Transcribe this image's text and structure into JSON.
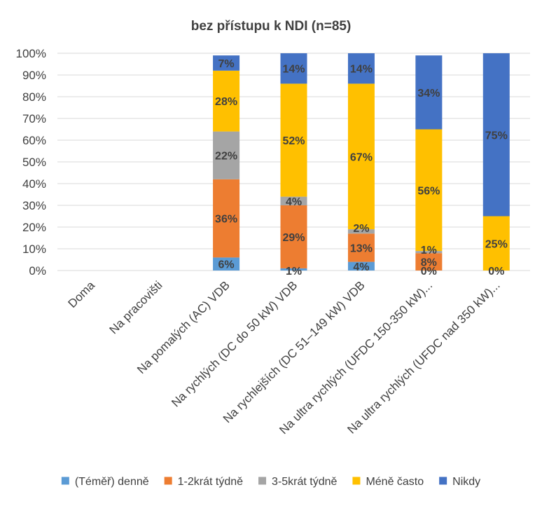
{
  "chart_data": {
    "type": "bar",
    "stacked": true,
    "title": "bez přístupu k NDI (n=85)",
    "xlabel": "",
    "ylabel": "",
    "ylim": [
      0,
      100
    ],
    "y_ticks": [
      "0%",
      "10%",
      "20%",
      "30%",
      "40%",
      "50%",
      "60%",
      "70%",
      "80%",
      "90%",
      "100%"
    ],
    "grid": true,
    "legend_position": "bottom",
    "categories": [
      "Doma",
      "Na pracovišti",
      "Na pomalých (AC) VDB",
      "Na rychlých (DC do 50 kW) VDB",
      "Na rychlejších (DC 51–149 kW) VDB",
      "Na ultra rychlých (UFDC 150-350 kW)...",
      "Na ultra rychlých (UFDC nad 350 kW)..."
    ],
    "series": [
      {
        "name": "(Téměř) denně",
        "color": "#5B9BD5",
        "values": [
          null,
          null,
          6,
          1,
          4,
          0,
          0
        ],
        "labels": [
          "",
          "",
          "6%",
          "1%",
          "4%",
          "0%",
          "0%"
        ]
      },
      {
        "name": "1-2krát týdně",
        "color": "#ED7D31",
        "values": [
          null,
          null,
          36,
          29,
          13,
          8,
          0
        ],
        "labels": [
          "",
          "",
          "36%",
          "29%",
          "13%",
          "8%",
          ""
        ]
      },
      {
        "name": "3-5krát týdně",
        "color": "#A5A5A5",
        "values": [
          null,
          null,
          22,
          4,
          2,
          1,
          0
        ],
        "labels": [
          "",
          "",
          "22%",
          "4%",
          "2%",
          "1%",
          ""
        ]
      },
      {
        "name": "Méně často",
        "color": "#FFC000",
        "values": [
          null,
          null,
          28,
          52,
          67,
          56,
          25
        ],
        "labels": [
          "",
          "",
          "28%",
          "52%",
          "67%",
          "56%",
          "25%"
        ]
      },
      {
        "name": "Nikdy",
        "color": "#4472C4",
        "values": [
          null,
          null,
          7,
          14,
          14,
          34,
          75
        ],
        "labels": [
          "",
          "",
          "7%",
          "14%",
          "14%",
          "34%",
          "75%"
        ]
      }
    ]
  }
}
